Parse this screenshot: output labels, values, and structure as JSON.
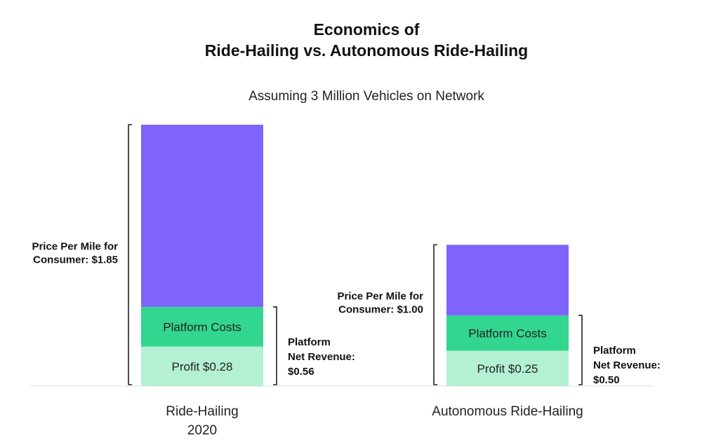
{
  "chart_data": {
    "type": "bar",
    "stacked": true,
    "title": [
      "Economics of",
      "Ride-Hailing vs. Autonomous Ride-Hailing"
    ],
    "subtitle": "Assuming 3 Million Vehicles on Network",
    "categories": [
      [
        "Ride-Hailing",
        "2020"
      ],
      [
        "Autonomous Ride-Hailing"
      ]
    ],
    "unit": "$ per mile",
    "ylim": [
      0,
      1.85
    ],
    "grid": false,
    "legend": "none",
    "segments": [
      {
        "bar": 0,
        "parts": [
          {
            "label": "Profit $0.28",
            "value": 0.28,
            "color": "#b3f0d4"
          },
          {
            "label": "Platform Costs",
            "value": 0.28,
            "color": "#33d68f"
          },
          {
            "label": "",
            "value": 1.29,
            "color": "#7f63fb"
          }
        ]
      },
      {
        "bar": 1,
        "parts": [
          {
            "label": "Profit $0.25",
            "value": 0.25,
            "color": "#b3f0d4"
          },
          {
            "label": "Platform Costs",
            "value": 0.25,
            "color": "#33d68f"
          },
          {
            "label": "",
            "value": 0.5,
            "color": "#7f63fb"
          }
        ]
      }
    ],
    "annotations": [
      {
        "bar": 0,
        "text": [
          "Price Per Mile for",
          "Consumer: $1.85"
        ],
        "side": "left",
        "from": 0,
        "to": 1.85
      },
      {
        "bar": 0,
        "text": [
          "Platform",
          "Net Revenue:",
          "$0.56"
        ],
        "side": "right",
        "from": 0,
        "to": 0.56
      },
      {
        "bar": 1,
        "text": [
          "Price Per Mile for",
          "Consumer: $1.00"
        ],
        "side": "left",
        "from": 0,
        "to": 1.0
      },
      {
        "bar": 1,
        "text": [
          "Platform",
          "Net Revenue:",
          "$0.50"
        ],
        "side": "right",
        "from": 0,
        "to": 0.5
      }
    ]
  }
}
